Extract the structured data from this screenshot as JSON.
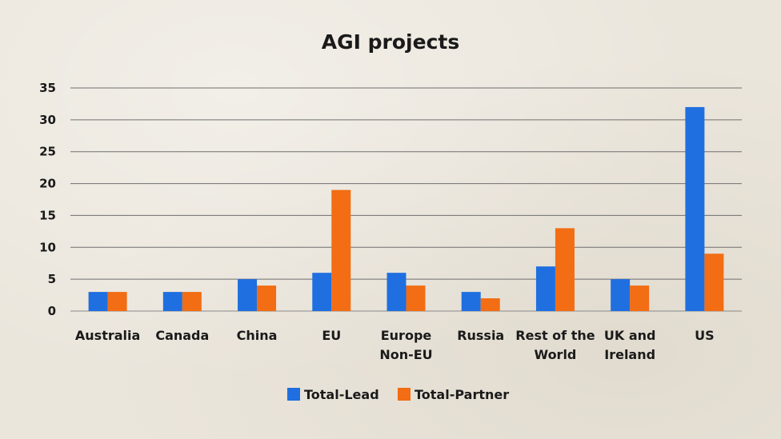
{
  "chart_data": {
    "type": "bar",
    "title": "AGI projects",
    "categories": [
      [
        "Australia"
      ],
      [
        "Canada"
      ],
      [
        "China"
      ],
      [
        "EU"
      ],
      [
        "Europe",
        "Non-EU"
      ],
      [
        "Russia"
      ],
      [
        "Rest of the",
        "World"
      ],
      [
        "UK and",
        "Ireland"
      ],
      [
        "US"
      ]
    ],
    "series": [
      {
        "name": "Total-Lead",
        "color": "#1f6fe0",
        "values": [
          3,
          3,
          5,
          6,
          6,
          3,
          7,
          5,
          32
        ]
      },
      {
        "name": "Total-Partner",
        "color": "#f26d13",
        "values": [
          3,
          3,
          4,
          19,
          4,
          2,
          13,
          4,
          9
        ]
      }
    ],
    "ylim": [
      0,
      35
    ],
    "yticks": [
      0,
      5,
      10,
      15,
      20,
      25,
      30,
      35
    ],
    "grid": true,
    "legend_position": "bottom-center"
  }
}
